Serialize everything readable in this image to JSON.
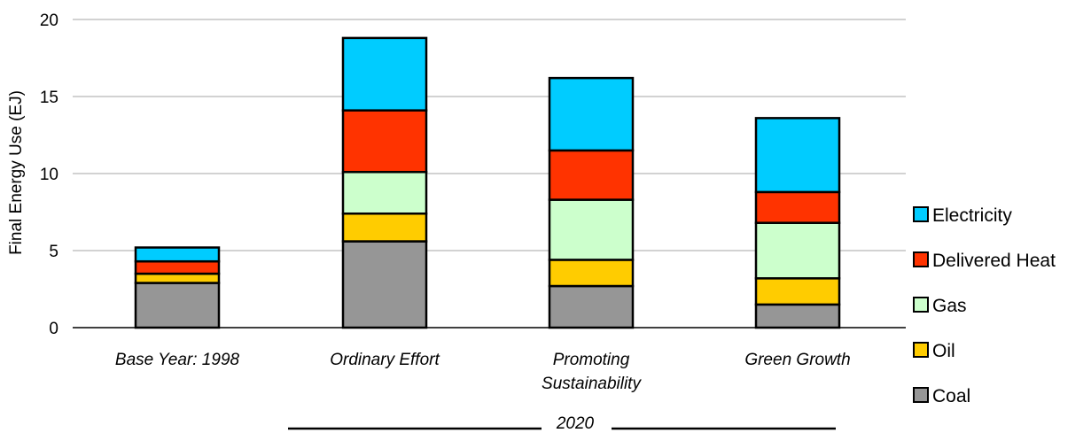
{
  "chart_data": {
    "type": "bar",
    "stacked": true,
    "categories": [
      "Base Year: 1998",
      "Ordinary Effort",
      "Promoting Sustainability",
      "Green Growth"
    ],
    "group_label": "2020",
    "group_categories": [
      "Ordinary Effort",
      "Promoting Sustainability",
      "Green Growth"
    ],
    "ylabel": "Final Energy Use (EJ)",
    "ylim": [
      0,
      20
    ],
    "yticks": [
      0,
      5,
      10,
      15,
      20
    ],
    "grid": true,
    "legend_position": "right",
    "series": [
      {
        "name": "Coal",
        "color": "#969696",
        "values": [
          2.9,
          5.6,
          2.7,
          1.5
        ]
      },
      {
        "name": "Oil",
        "color": "#ffcc00",
        "values": [
          0.6,
          1.8,
          1.7,
          1.7
        ]
      },
      {
        "name": "Gas",
        "color": "#ccffcc",
        "values": [
          0.0,
          2.7,
          3.9,
          3.6
        ]
      },
      {
        "name": "Delivered Heat",
        "color": "#ff3300",
        "values": [
          0.8,
          4.0,
          3.2,
          2.0
        ]
      },
      {
        "name": "Electricity",
        "color": "#00ccff",
        "values": [
          0.9,
          4.7,
          4.7,
          4.8
        ]
      }
    ]
  }
}
